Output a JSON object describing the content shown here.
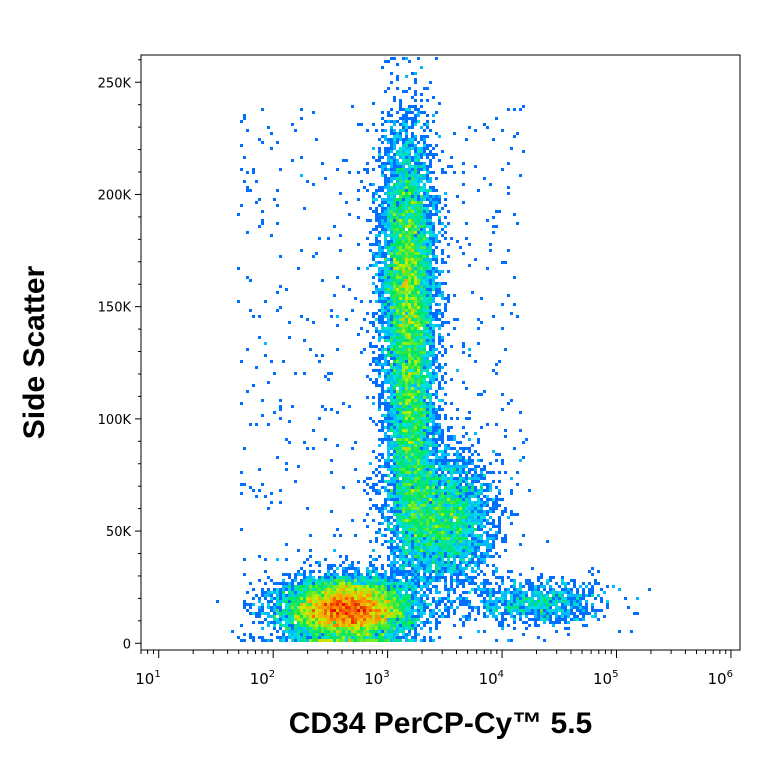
{
  "chart_data": {
    "type": "scatter",
    "title": "",
    "xlabel": "CD34 PerCP-Cy™ 5.5",
    "ylabel": "Side Scatter",
    "x_scale": "log",
    "y_scale": "linear",
    "xlim": [
      7,
      1200000
    ],
    "ylim": [
      -3000,
      262144
    ],
    "x_ticks": [
      {
        "value": 10,
        "base": "10",
        "exp": "1"
      },
      {
        "value": 100,
        "base": "10",
        "exp": "2"
      },
      {
        "value": 1000,
        "base": "10",
        "exp": "3"
      },
      {
        "value": 10000,
        "base": "10",
        "exp": "4"
      },
      {
        "value": 100000,
        "base": "10",
        "exp": "5"
      },
      {
        "value": 1000000,
        "base": "10",
        "exp": "6"
      }
    ],
    "y_ticks": [
      {
        "value": 0,
        "label": "0"
      },
      {
        "value": 50000,
        "label": "50K"
      },
      {
        "value": 100000,
        "label": "100K"
      },
      {
        "value": 150000,
        "label": "150K"
      },
      {
        "value": 200000,
        "label": "200K"
      },
      {
        "value": 250000,
        "label": "250K"
      }
    ],
    "grid": false,
    "legend": "none",
    "density_coloring": "pseudocolor (blue → cyan → green → yellow → red)",
    "populations": [
      {
        "x": 450,
        "y": 15000,
        "sx_log": 0.28,
        "sy": 7000,
        "density": "highest (red)"
      },
      {
        "x": 1500,
        "y": 165000,
        "sx_log": 0.12,
        "sy": 32000,
        "density": "medium (green)"
      },
      {
        "x": 3000,
        "y": 55000,
        "sx_log": 0.22,
        "sy": 15000,
        "density": "low (cyan)"
      },
      {
        "x": 1600,
        "y": 95000,
        "sx_log": 0.11,
        "sy": 30000,
        "density": "low (cyan/blue)"
      },
      {
        "x": 20000,
        "y": 18000,
        "sx_log": 0.3,
        "sy": 5000,
        "density": "sparse (blue)"
      }
    ]
  }
}
